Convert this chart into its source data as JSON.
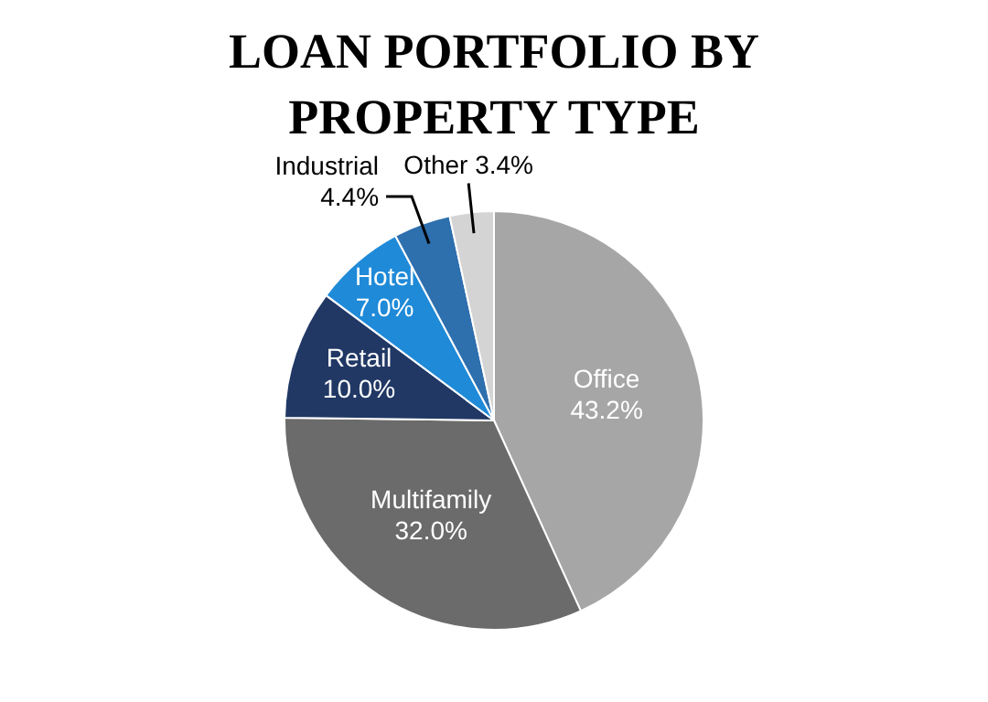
{
  "chart_data": {
    "type": "pie",
    "title": "LOAN PORTFOLIO BY PROPERTY TYPE",
    "categories": [
      "Office",
      "Multifamily",
      "Retail",
      "Hotel",
      "Industrial",
      "Other"
    ],
    "values": [
      43.2,
      32.0,
      10.0,
      7.0,
      4.4,
      3.4
    ],
    "value_labels": [
      "43.2%",
      "32.0%",
      "10.0%",
      "7.0%",
      "4.4%",
      "3.4%"
    ],
    "colors": [
      "#a6a6a6",
      "#6b6b6b",
      "#213865",
      "#1f8ad8",
      "#2e6fae",
      "#d4d4d4"
    ],
    "legend": false
  }
}
